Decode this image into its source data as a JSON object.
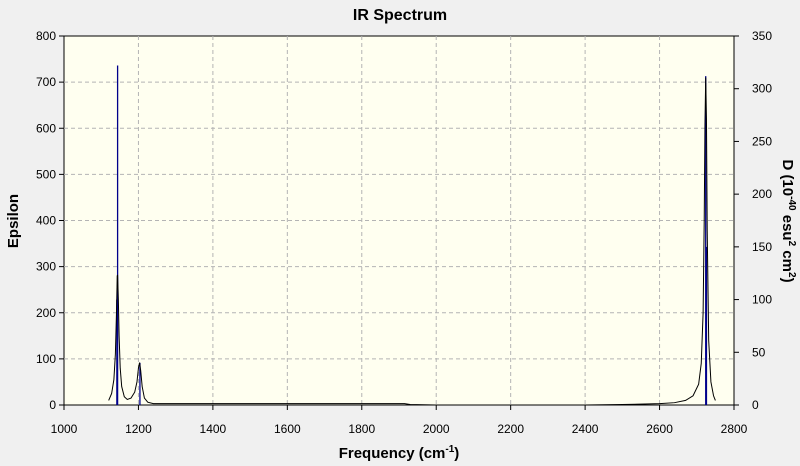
{
  "chart_data": {
    "type": "line",
    "title": "IR Spectrum",
    "xlabel": "Frequency (cm",
    "xlabel_sup": "-1",
    "xlabel_close": ")",
    "ylabel": "Epsilon",
    "y2label": {
      "p1": "D (10",
      "s1": "-40",
      "p2": " esu",
      "s2": "2",
      "p3": " cm",
      "s3": "2",
      "p4": ")"
    },
    "xlim": [
      1000,
      2800
    ],
    "ylim": [
      0,
      800
    ],
    "y2lim": [
      0,
      350
    ],
    "xticks": [
      "1000",
      "1200",
      "1400",
      "1600",
      "1800",
      "2000",
      "2200",
      "2400",
      "2600",
      "2800"
    ],
    "yticks": [
      "0",
      "100",
      "200",
      "300",
      "400",
      "500",
      "600",
      "700",
      "800"
    ],
    "y2ticks": [
      "0",
      "50",
      "100",
      "150",
      "200",
      "250",
      "300",
      "350"
    ],
    "grid": true,
    "colors": {
      "spectrum": "#000000",
      "stick": "#00008b",
      "plot_bg": "#fffff0",
      "grid": "#b4b4b4"
    },
    "series": [
      {
        "x": [
          1120,
          1128,
          1134,
          1138,
          1141,
          1143,
          1144,
          1146,
          1148,
          1151,
          1155,
          1162,
          1170,
          1180,
          1190,
          1196,
          1200,
          1203,
          1206,
          1210,
          1216,
          1225,
          1240,
          1300,
          1400,
          1500,
          1600,
          1700,
          1800,
          1900,
          1915,
          1930,
          2000,
          2200,
          2400,
          2500,
          2600,
          2640,
          2670,
          2690,
          2705,
          2712,
          2717,
          2720,
          2722,
          2724,
          2726,
          2728,
          2732,
          2738,
          2745,
          2750
        ],
        "values": [
          10,
          25,
          55,
          110,
          200,
          280,
          282,
          230,
          150,
          80,
          40,
          18,
          12,
          15,
          28,
          50,
          80,
          92,
          75,
          40,
          15,
          6,
          3,
          3,
          3,
          3,
          3,
          3,
          3,
          3,
          3,
          1,
          0,
          0,
          0,
          1,
          3,
          5,
          10,
          20,
          45,
          90,
          200,
          400,
          610,
          710,
          620,
          380,
          140,
          50,
          20,
          10
        ]
      }
    ],
    "sticks": [
      {
        "x": 1144,
        "y2": 322
      },
      {
        "x": 1142,
        "y2": 100
      },
      {
        "x": 1204,
        "y2": 40
      },
      {
        "x": 2724,
        "y2": 312
      },
      {
        "x": 2726,
        "y2": 150
      }
    ]
  }
}
